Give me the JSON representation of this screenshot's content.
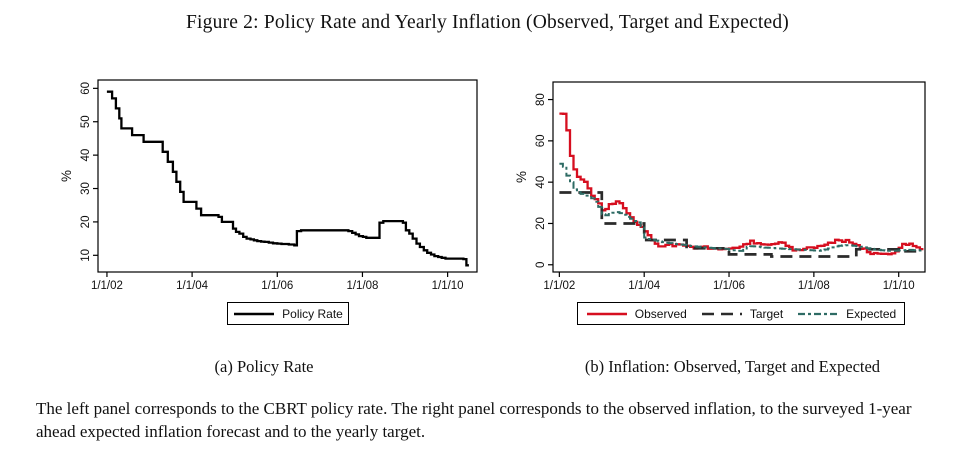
{
  "figure": {
    "title": "Figure 2: Policy Rate and Yearly Inflation (Observed, Target and Expected)",
    "note": "The left panel corresponds to the CBRT policy rate. The right panel corresponds to the observed inflation, to the surveyed 1-year ahead expected inflation forecast and to the yearly target."
  },
  "colors": {
    "policy": "#000000",
    "observed": "#d60e1f",
    "target": "#2b2b2b",
    "expected": "#2e6b64"
  },
  "panel_a": {
    "caption": "(a) Policy Rate",
    "legend": [
      {
        "label": "Policy Rate",
        "color_key": "policy",
        "style": "solid",
        "width": 2.6
      }
    ]
  },
  "panel_b": {
    "caption": "(b) Inflation: Observed, Target and Expected",
    "legend": [
      {
        "label": "Observed",
        "color_key": "observed",
        "style": "solid",
        "width": 2.6
      },
      {
        "label": "Target",
        "color_key": "target",
        "style": "longdash",
        "width": 2.4
      },
      {
        "label": "Expected",
        "color_key": "expected",
        "style": "dashdot",
        "width": 2.2
      }
    ]
  },
  "chart_data": [
    {
      "type": "line",
      "title": "Policy Rate",
      "xlabel": "",
      "ylabel": "%",
      "xlim": [
        2001.79,
        2010.69
      ],
      "ylim": [
        5,
        62.5
      ],
      "y_ticks": [
        10,
        20,
        30,
        40,
        50,
        60
      ],
      "x_ticks": [
        2002,
        2004,
        2006,
        2008,
        2010
      ],
      "x_tick_labels": [
        "1/1/02",
        "1/1/04",
        "1/1/06",
        "1/1/08",
        "1/1/10"
      ],
      "grid": false,
      "series": [
        {
          "name": "Policy Rate",
          "color_key": "policy",
          "style": "solid",
          "width": 2.3,
          "step": true,
          "points": [
            [
              2002.0,
              59
            ],
            [
              2002.12,
              57
            ],
            [
              2002.21,
              54
            ],
            [
              2002.29,
              51
            ],
            [
              2002.34,
              48
            ],
            [
              2002.59,
              46
            ],
            [
              2002.86,
              44
            ],
            [
              2003.31,
              41
            ],
            [
              2003.43,
              38
            ],
            [
              2003.55,
              35
            ],
            [
              2003.63,
              32
            ],
            [
              2003.72,
              29
            ],
            [
              2003.8,
              26
            ],
            [
              2004.1,
              24
            ],
            [
              2004.21,
              22
            ],
            [
              2004.62,
              21.5
            ],
            [
              2004.7,
              20
            ],
            [
              2004.96,
              18
            ],
            [
              2005.03,
              17
            ],
            [
              2005.11,
              16.5
            ],
            [
              2005.2,
              15.5
            ],
            [
              2005.28,
              15
            ],
            [
              2005.37,
              14.75
            ],
            [
              2005.45,
              14.5
            ],
            [
              2005.53,
              14.25
            ],
            [
              2005.62,
              14.1
            ],
            [
              2005.7,
              14.0
            ],
            [
              2005.8,
              13.8
            ],
            [
              2005.9,
              13.6
            ],
            [
              2006.0,
              13.5
            ],
            [
              2006.1,
              13.4
            ],
            [
              2006.27,
              13.25
            ],
            [
              2006.4,
              13.0
            ],
            [
              2006.46,
              17.25
            ],
            [
              2006.56,
              17.5
            ],
            [
              2007.67,
              17.25
            ],
            [
              2007.76,
              16.75
            ],
            [
              2007.84,
              16.25
            ],
            [
              2007.92,
              15.75
            ],
            [
              2008.01,
              15.5
            ],
            [
              2008.09,
              15.25
            ],
            [
              2008.4,
              19.75
            ],
            [
              2008.49,
              20.25
            ],
            [
              2008.95,
              19.75
            ],
            [
              2009.02,
              17.5
            ],
            [
              2009.1,
              16.5
            ],
            [
              2009.18,
              15
            ],
            [
              2009.27,
              13.5
            ],
            [
              2009.35,
              12.5
            ],
            [
              2009.44,
              11.5
            ],
            [
              2009.52,
              10.75
            ],
            [
              2009.61,
              10.25
            ],
            [
              2009.69,
              9.75
            ],
            [
              2009.78,
              9.5
            ],
            [
              2009.86,
              9.25
            ],
            [
              2009.95,
              9.0
            ],
            [
              2010.37,
              8.85
            ],
            [
              2010.44,
              7.0
            ],
            [
              2010.5,
              7.0
            ]
          ]
        }
      ]
    },
    {
      "type": "line",
      "title": "Inflation: Observed, Target and Expected",
      "xlabel": "",
      "ylabel": "%",
      "xlim": [
        2001.85,
        2010.62
      ],
      "ylim": [
        -3.5,
        88.5
      ],
      "y_ticks": [
        0,
        20,
        40,
        60,
        80
      ],
      "x_ticks": [
        2002,
        2004,
        2006,
        2008,
        2010
      ],
      "x_tick_labels": [
        "1/1/02",
        "1/1/04",
        "1/1/06",
        "1/1/08",
        "1/1/10"
      ],
      "grid": false,
      "series": [
        {
          "name": "Observed",
          "color_key": "observed",
          "style": "solid",
          "width": 2.3,
          "step": true,
          "x_start": 2002,
          "x_step": 0.08333,
          "values": [
            73.2,
            73.1,
            65.1,
            52.7,
            46.2,
            42.6,
            41.3,
            40.2,
            37.0,
            33.4,
            31.8,
            29.7,
            26.4,
            27.0,
            29.4,
            29.5,
            30.7,
            29.8,
            27.4,
            24.9,
            23.0,
            20.8,
            19.3,
            18.4,
            16.2,
            14.3,
            11.8,
            10.2,
            8.9,
            8.9,
            9.6,
            10.0,
            9.0,
            9.9,
            9.8,
            9.3,
            9.2,
            8.7,
            7.9,
            8.2,
            8.7,
            8.9,
            7.8,
            7.9,
            8.0,
            7.5,
            7.6,
            7.7,
            7.9,
            8.2,
            8.2,
            8.8,
            9.9,
            10.1,
            11.7,
            10.3,
            10.5,
            9.9,
            9.8,
            9.7,
            10.0,
            10.2,
            10.9,
            10.7,
            9.2,
            8.6,
            6.9,
            7.4,
            7.1,
            7.7,
            8.4,
            8.4,
            8.2,
            9.1,
            9.2,
            9.7,
            10.7,
            10.6,
            12.1,
            11.8,
            11.1,
            12.0,
            10.8,
            10.1,
            9.5,
            7.7,
            7.9,
            6.1,
            5.2,
            5.7,
            5.4,
            5.3,
            5.3,
            5.1,
            5.5,
            6.5,
            8.2,
            10.1,
            9.6,
            10.2,
            9.1,
            8.4,
            7.6
          ]
        },
        {
          "name": "Target",
          "color_key": "target",
          "style": "longdash",
          "width": 2.7,
          "step": true,
          "points": [
            [
              2002,
              35
            ],
            [
              2003,
              20
            ],
            [
              2004,
              12
            ],
            [
              2005,
              8
            ],
            [
              2006,
              5
            ],
            [
              2007,
              4
            ],
            [
              2009,
              7.5
            ],
            [
              2010,
              6.5
            ],
            [
              2010.55,
              6.5
            ]
          ]
        },
        {
          "name": "Expected",
          "color_key": "expected",
          "style": "dashdot",
          "width": 2.0,
          "step": true,
          "x_start": 2002,
          "x_step": 0.08333,
          "values": [
            48.9,
            47.5,
            43.2,
            40.0,
            36.5,
            35.2,
            34.3,
            33.5,
            32.8,
            32.2,
            30.5,
            28.0,
            24.5,
            24.0,
            24.6,
            25.2,
            25.5,
            25.0,
            24.2,
            23.2,
            22.3,
            21.2,
            20.5,
            18.0,
            13.2,
            12.5,
            12.1,
            11.7,
            11.3,
            11.0,
            10.7,
            10.5,
            10.2,
            10.0,
            9.8,
            9.6,
            9.3,
            9.1,
            8.9,
            8.7,
            8.5,
            8.4,
            8.2,
            8.1,
            8.0,
            7.9,
            7.8,
            7.7,
            7.3,
            7.0,
            6.8,
            6.7,
            7.2,
            8.6,
            9.0,
            8.9,
            8.7,
            8.5,
            8.3,
            8.2,
            8.1,
            8.0,
            7.9,
            7.8,
            7.7,
            7.6,
            7.5,
            7.4,
            7.3,
            7.2,
            7.1,
            7.0,
            6.9,
            6.8,
            7.0,
            7.4,
            7.9,
            8.4,
            8.9,
            9.2,
            9.4,
            9.5,
            9.4,
            9.2,
            9.0,
            8.7,
            8.4,
            8.0,
            7.7,
            7.4,
            7.2,
            7.0,
            6.9,
            6.8,
            6.8,
            6.8,
            6.9,
            7.0,
            7.1,
            7.2,
            7.1,
            7.0,
            6.9
          ]
        }
      ]
    }
  ]
}
